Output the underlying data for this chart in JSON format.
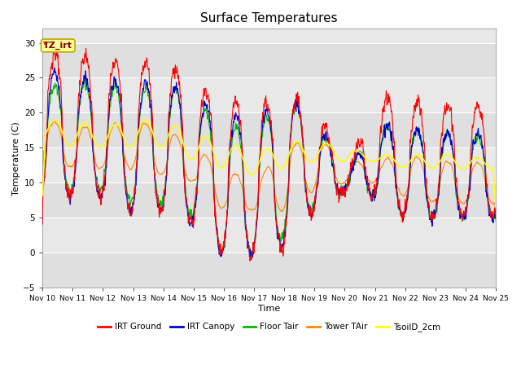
{
  "title": "Surface Temperatures",
  "xlabel": "Time",
  "ylabel": "Temperature (C)",
  "ylim": [
    -5,
    32
  ],
  "yticks": [
    -5,
    0,
    5,
    10,
    15,
    20,
    25,
    30
  ],
  "series_colors": {
    "IRT Ground": "#ff0000",
    "IRT Canopy": "#0000cc",
    "Floor Tair": "#00bb00",
    "Tower TAir": "#ff8800",
    "TsoilD_2cm": "#ffff00"
  },
  "annotation_text": "TZ_irt",
  "annotation_bg": "#ffff99",
  "annotation_border": "#bbaa00",
  "plot_bg_main": "#e8e8e8",
  "plot_bg_band": "#d0d0d0",
  "grid_color": "#ffffff",
  "x_start": 10,
  "x_end": 25,
  "xtick_labels": [
    "Nov 10",
    "Nov 11",
    "Nov 12",
    "Nov 13",
    "Nov 14",
    "Nov 15",
    "Nov 16",
    "Nov 17",
    "Nov 18",
    "Nov 19",
    "Nov 20",
    "Nov 21",
    "Nov 22",
    "Nov 23",
    "Nov 24",
    "Nov 25"
  ],
  "xtick_positions": [
    10,
    11,
    12,
    13,
    14,
    15,
    16,
    17,
    18,
    19,
    20,
    21,
    22,
    23,
    24,
    25
  ]
}
